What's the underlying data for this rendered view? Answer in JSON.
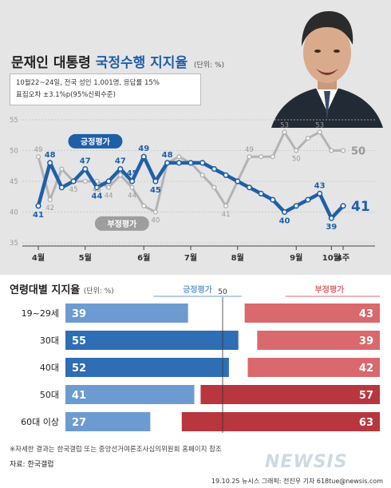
{
  "header": {
    "title_prefix": "문재인 대통령",
    "title_highlight": "국정수행 지지율",
    "unit": "(단위: %)",
    "survey_line1": "10월22~24일, 전국 성인 1,001명, 응답률 15%",
    "survey_line2": "표집오차 ±3.1%p(95%신뢰수준)"
  },
  "colors": {
    "positive": "#1f5fa8",
    "negative": "#a6a6a6",
    "bar_positive": "#6d9bd1",
    "bar_positive_dark": "#2f6db5",
    "bar_negative": "#d9696c",
    "bar_negative_dark": "#b8363d",
    "panel_bg": "#e5e5e5"
  },
  "chart_data": [
    {
      "type": "line",
      "ylim": [
        35,
        55
      ],
      "yticks": [
        "35",
        "40",
        "45",
        "50",
        "55"
      ],
      "month_labels": [
        "4월",
        "5월",
        "6월",
        "7월",
        "8월",
        "9월",
        "10월",
        "4주"
      ],
      "series": [
        {
          "name": "긍정평가",
          "values": [
            41,
            48,
            44,
            45,
            47,
            44,
            45,
            47,
            45,
            49,
            45,
            48,
            48,
            48,
            48,
            47,
            46,
            45,
            44,
            43,
            42,
            40,
            41,
            42,
            43,
            39,
            41
          ]
        },
        {
          "name": "부정평가",
          "values": [
            49,
            42,
            47,
            45,
            45,
            45,
            44,
            46,
            44,
            41,
            40,
            48,
            49,
            48,
            46,
            44,
            41,
            45,
            49,
            49,
            49,
            53,
            50,
            52,
            53,
            50,
            50
          ]
        }
      ],
      "data_labels": {
        "positive": [
          "41",
          "48",
          "47",
          "44",
          "47",
          "45",
          "49",
          "45",
          "48",
          "40",
          "43",
          "39",
          "41"
        ],
        "negative": [
          "49",
          "42",
          "45",
          "45",
          "44",
          "44",
          "40",
          "41",
          "49",
          "53",
          "50",
          "53",
          "50"
        ]
      }
    },
    {
      "type": "bar",
      "title": "연령대별 지지율",
      "unit": "(단위: %)",
      "reference_value": 50,
      "reference_label": "50",
      "legend": [
        "긍정평가",
        "부정평가"
      ],
      "categories": [
        "19~29세",
        "30대",
        "40대",
        "50대",
        "60대 이상"
      ],
      "series": [
        {
          "name": "긍정평가",
          "values": [
            39,
            55,
            52,
            41,
            27
          ]
        },
        {
          "name": "부정평가",
          "values": [
            43,
            39,
            42,
            57,
            63
          ]
        }
      ]
    }
  ],
  "footer": {
    "note": "※자세한 결과는 한국갤럽 또는 중앙선거여론조사심의위원회 홈페이지 참조",
    "source": "자료: 한국갤럽",
    "credit": "19.10.25 뉴시스 그래픽: 전진우 기자 618tue@newsis.com",
    "watermark": "NEWSIS"
  }
}
